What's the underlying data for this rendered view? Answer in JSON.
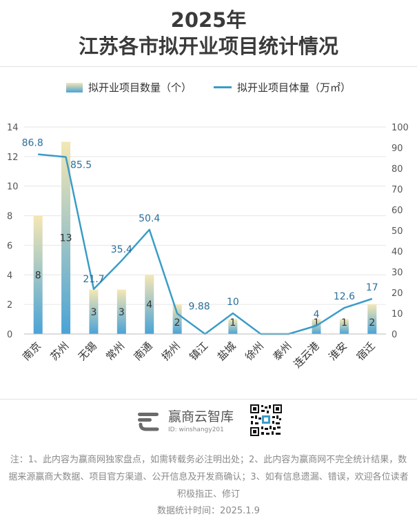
{
  "header": {
    "title_line1": "2025年",
    "title_line2": "江苏各市拟开业项目统计情况"
  },
  "legend": {
    "bar_label": "拟开业项目数量（个）",
    "line_label": "拟开业项目体量（万㎡）"
  },
  "chart_data": {
    "type": "bar",
    "categories": [
      "南京",
      "苏州",
      "无锡",
      "常州",
      "南通",
      "扬州",
      "镇江",
      "盐城",
      "徐州",
      "泰州",
      "连云港",
      "淮安",
      "宿迁"
    ],
    "series": [
      {
        "name": "拟开业项目数量（个）",
        "type": "bar",
        "axis": "left",
        "values": [
          8,
          13,
          3,
          3,
          4,
          2,
          0,
          1,
          0,
          0,
          1,
          1,
          2
        ],
        "labels": [
          "8",
          "13",
          "3",
          "3",
          "4",
          "2",
          "",
          "1",
          "",
          "",
          "1",
          "1",
          "2"
        ]
      },
      {
        "name": "拟开业项目体量（万㎡）",
        "type": "line",
        "axis": "right",
        "values": [
          86.8,
          85.5,
          21.7,
          35.4,
          50.4,
          9.88,
          0,
          10,
          0,
          0,
          4,
          12.6,
          17
        ],
        "labels": [
          "86.8",
          "85.5",
          "21.7",
          "35.4",
          "50.4",
          "9.88",
          "",
          "10",
          "",
          "",
          "4",
          "12.6",
          "17"
        ]
      }
    ],
    "y_left": {
      "min": 0,
      "max": 14,
      "ticks": [
        "0",
        "2",
        "4",
        "6",
        "8",
        "10",
        "12",
        "14"
      ]
    },
    "y_right": {
      "min": 0,
      "max": 100,
      "ticks": [
        "0",
        "10",
        "20",
        "30",
        "40",
        "50",
        "60",
        "70",
        "80",
        "90",
        "100"
      ]
    },
    "grid": true,
    "legend_position": "top-center",
    "colors": {
      "bar_top": "#f5e7b4",
      "bar_bottom": "#4aa3d6",
      "line": "#3a9cc7",
      "label": "#2a6f99"
    }
  },
  "footer": {
    "brand_name": "赢商云智库",
    "brand_id": "ID: winshangy201",
    "note": "注：1、此内容为赢商网独家盘点，如需转载务必注明出处；2、此内容为赢商网不完全统计结果，数据来源赢商大数据、项目官方渠道、公开信息及开发商确认；3、如有信息遗漏、错误，欢迎各位读者积极指正、修订",
    "date": "数据统计时间：2025.1.9"
  }
}
